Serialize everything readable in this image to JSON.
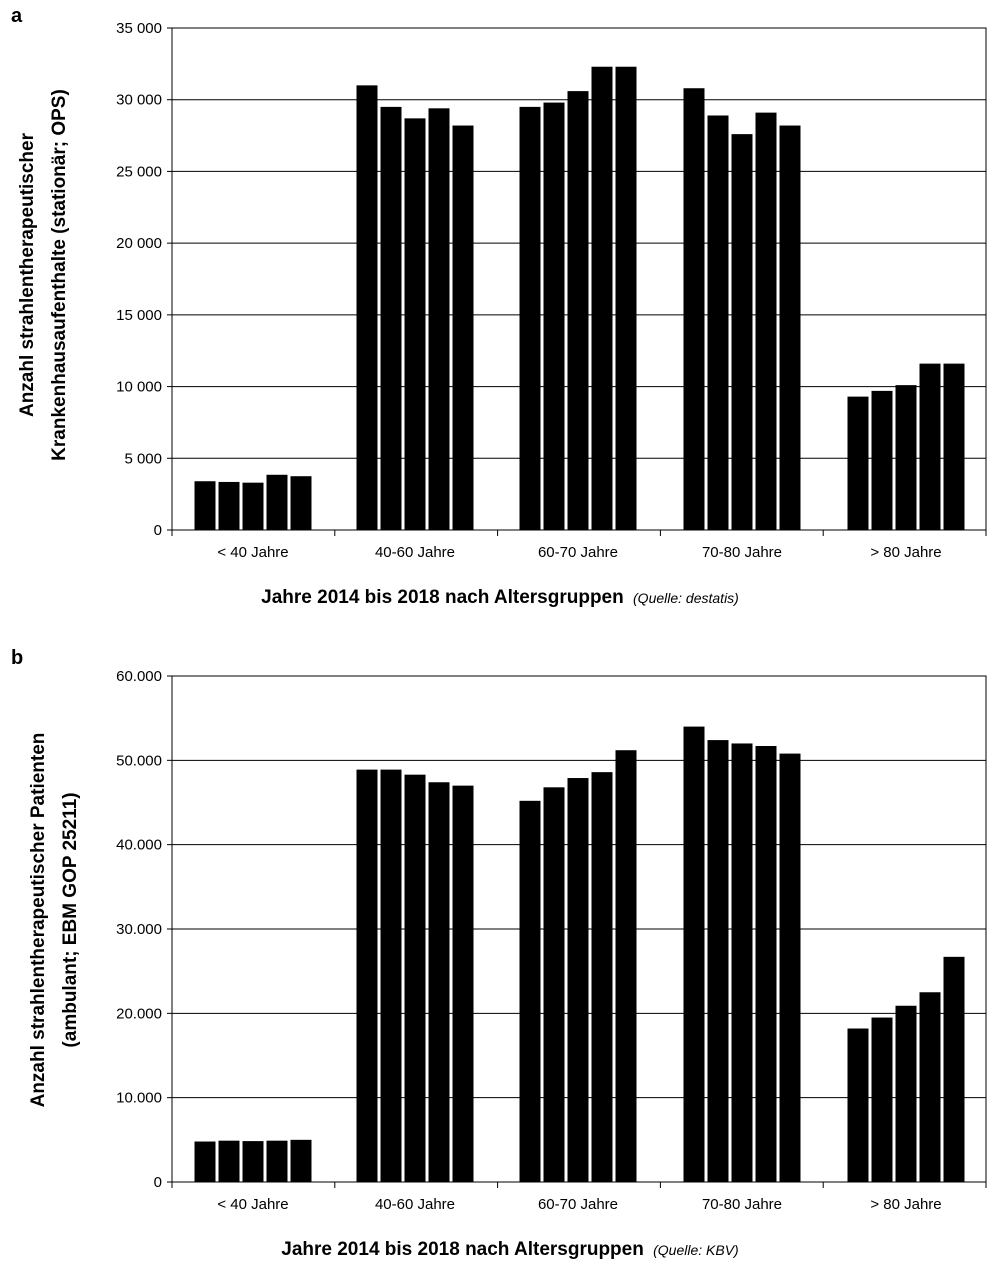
{
  "chart_data": [
    {
      "type": "bar",
      "panel": "a",
      "categories": [
        "< 40 Jahre",
        "40-60 Jahre",
        "60-70 Jahre",
        "70-80 Jahre",
        "> 80 Jahre"
      ],
      "series": [
        {
          "values": [
            3400,
            31000,
            29500,
            30800,
            9300
          ]
        },
        {
          "values": [
            3350,
            29500,
            29800,
            28900,
            9700
          ]
        },
        {
          "values": [
            3300,
            28700,
            30600,
            27600,
            10100
          ]
        },
        {
          "values": [
            3850,
            29400,
            32300,
            29100,
            11600
          ]
        },
        {
          "values": [
            3750,
            28200,
            32300,
            28200,
            11600
          ]
        }
      ],
      "ylim": [
        0,
        35000
      ],
      "yticks": [
        0,
        5000,
        10000,
        15000,
        20000,
        25000,
        30000,
        35000
      ],
      "ytick_labels": [
        "0",
        "5 000",
        "10 000",
        "15 000",
        "20 000",
        "25 000",
        "30 000",
        "35 000"
      ],
      "ylabel_line1": "Anzahl strahlentherapeutischer",
      "ylabel_line2": "Krankenhausaufenthalte (stationär; OPS)",
      "xlabel": "Jahre 2014 bis 2018 nach Altersgruppen",
      "source": "(Quelle: destatis)",
      "grid": true,
      "bar_color": "#000000"
    },
    {
      "type": "bar",
      "panel": "b",
      "categories": [
        "< 40 Jahre",
        "40-60 Jahre",
        "60-70 Jahre",
        "70-80 Jahre",
        "> 80 Jahre"
      ],
      "series": [
        {
          "values": [
            4800,
            48900,
            45200,
            54000,
            18200
          ]
        },
        {
          "values": [
            4900,
            48900,
            46800,
            52400,
            19500
          ]
        },
        {
          "values": [
            4850,
            48300,
            47900,
            52000,
            20900
          ]
        },
        {
          "values": [
            4900,
            47400,
            48600,
            51700,
            22500
          ]
        },
        {
          "values": [
            5000,
            47000,
            51200,
            50800,
            26700
          ]
        }
      ],
      "ylim": [
        0,
        60000
      ],
      "yticks": [
        0,
        10000,
        20000,
        30000,
        40000,
        50000,
        60000
      ],
      "ytick_labels": [
        "0",
        "10.000",
        "20.000",
        "30.000",
        "40.000",
        "50.000",
        "60.000"
      ],
      "ylabel_line1": "Anzahl strahlentherapeutischer Patienten",
      "ylabel_line2": "(ambulant; EBM GOP 25211)",
      "xlabel": "Jahre 2014 bis 2018 nach Altersgruppen",
      "source": "(Quelle: KBV)",
      "grid": true,
      "bar_color": "#000000"
    }
  ]
}
